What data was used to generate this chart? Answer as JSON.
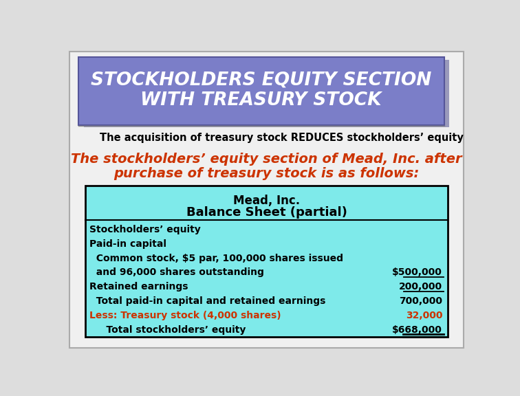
{
  "title_line1": "STOCKHOLDERS EQUITY SECTION",
  "title_line2": "WITH TREASURY STOCK",
  "title_bg": "#7B7EC8",
  "title_shadow": "#9999BB",
  "title_color": "#FFFFFF",
  "subtitle": "The acquisition of treasury stock REDUCES stockholders’ equity",
  "red_text_line1": "The stockholders’ equity section of Mead, Inc. after",
  "red_text_line2": "purchase of treasury stock is as follows:",
  "red_color": "#CC3300",
  "table_bg": "#7EEAEA",
  "table_border": "#000000",
  "table_header1": "Mead, Inc.",
  "table_header2": "Balance Sheet (partial)",
  "rows": [
    {
      "label": "Stockholders’ equity",
      "value": "",
      "indent": 0,
      "value_color": "black",
      "label_color": "black",
      "underline_val": false
    },
    {
      "label": "Paid-in capital",
      "value": "",
      "indent": 0,
      "value_color": "black",
      "label_color": "black",
      "underline_val": false
    },
    {
      "label": "  Common stock, $5 par, 100,000 shares issued",
      "value": "",
      "indent": 0,
      "value_color": "black",
      "label_color": "black",
      "underline_val": false
    },
    {
      "label": "  and 96,000 shares outstanding",
      "value": "$500,000",
      "indent": 0,
      "value_color": "black",
      "label_color": "black",
      "underline_val": true
    },
    {
      "label": "Retained earnings",
      "value": "200,000",
      "indent": 0,
      "value_color": "black",
      "label_color": "black",
      "underline_val": true
    },
    {
      "label": "  Total paid-in capital and retained earnings",
      "value": "700,000",
      "indent": 0,
      "value_color": "black",
      "label_color": "black",
      "underline_val": false
    },
    {
      "label": "Less: Treasury stock (4,000 shares)",
      "value": "32,000",
      "indent": 0,
      "value_color": "#CC3300",
      "label_color": "#CC3300",
      "underline_val": false
    },
    {
      "label": "     Total stockholders’ equity",
      "value": "$668,000",
      "indent": 0,
      "value_color": "black",
      "label_color": "black",
      "underline_val": false
    }
  ],
  "slide_bg": "#DDDDDD",
  "main_bg": "#F0F0F0"
}
